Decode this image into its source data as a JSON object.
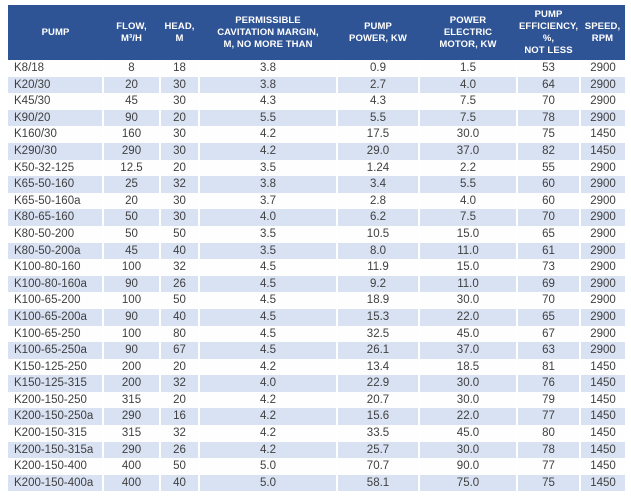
{
  "colors": {
    "header_bg": "#2F5496",
    "header_text": "#FFFFFF",
    "band_bg": "#D9E2F3",
    "row_bg": "#FEFEFE",
    "cell_text": "#3F3F3F"
  },
  "table": {
    "columns": [
      {
        "id": "pump",
        "label": "PUMP"
      },
      {
        "id": "flow",
        "label": "FLOW,\nM³/H"
      },
      {
        "id": "head",
        "label": "HEAD,\nM"
      },
      {
        "id": "cavitation",
        "label": "PERMISSIBLE\nCAVITATION MARGIN,\nM, NO MORE THAN"
      },
      {
        "id": "power",
        "label": "PUMP\nPOWER, KW"
      },
      {
        "id": "motor",
        "label": "POWER\nELECTRIC\nMOTOR, KW"
      },
      {
        "id": "efficiency",
        "label": "PUMP\nEFFICIENCY, %,\nNOT LESS"
      },
      {
        "id": "speed",
        "label": "SPEED,\nRPM"
      }
    ],
    "rows": [
      [
        "K8/18",
        "8",
        "18",
        "3.8",
        "0.9",
        "1.5",
        "53",
        "2900"
      ],
      [
        "K20/30",
        "20",
        "30",
        "3.8",
        "2.7",
        "4.0",
        "64",
        "2900"
      ],
      [
        "K45/30",
        "45",
        "30",
        "4.3",
        "4.3",
        "7.5",
        "70",
        "2900"
      ],
      [
        "K90/20",
        "90",
        "20",
        "5.5",
        "5.5",
        "7.5",
        "78",
        "2900"
      ],
      [
        "K160/30",
        "160",
        "30",
        "4.2",
        "17.5",
        "30.0",
        "75",
        "1450"
      ],
      [
        "K290/30",
        "290",
        "30",
        "4.2",
        "29.0",
        "37.0",
        "82",
        "1450"
      ],
      [
        "K50-32-125",
        "12.5",
        "20",
        "3.5",
        "1.24",
        "2.2",
        "55",
        "2900"
      ],
      [
        "K65-50-160",
        "25",
        "32",
        "3.8",
        "3.4",
        "5.5",
        "60",
        "2900"
      ],
      [
        "K65-50-160a",
        "20",
        "30",
        "3.7",
        "2.8",
        "4.0",
        "60",
        "2900"
      ],
      [
        "K80-65-160",
        "50",
        "30",
        "4.0",
        "6.2",
        "7.5",
        "70",
        "2900"
      ],
      [
        "K80-50-200",
        "50",
        "50",
        "3.5",
        "10.5",
        "15.0",
        "65",
        "2900"
      ],
      [
        "K80-50-200a",
        "45",
        "40",
        "3.5",
        "8.0",
        "11.0",
        "61",
        "2900"
      ],
      [
        "K100-80-160",
        "100",
        "32",
        "4.5",
        "11.9",
        "15.0",
        "73",
        "2900"
      ],
      [
        "K100-80-160a",
        "90",
        "26",
        "4.5",
        "9.2",
        "11.0",
        "69",
        "2900"
      ],
      [
        "K100-65-200",
        "100",
        "50",
        "4.5",
        "18.9",
        "30.0",
        "70",
        "2900"
      ],
      [
        "K100-65-200a",
        "90",
        "40",
        "4.5",
        "15.3",
        "22.0",
        "65",
        "2900"
      ],
      [
        "K100-65-250",
        "100",
        "80",
        "4.5",
        "32.5",
        "45.0",
        "67",
        "2900"
      ],
      [
        "K100-65-250a",
        "90",
        "67",
        "4.5",
        "26.1",
        "37.0",
        "63",
        "2900"
      ],
      [
        "K150-125-250",
        "200",
        "20",
        "4.2",
        "13.4",
        "18.5",
        "81",
        "1450"
      ],
      [
        "K150-125-315",
        "200",
        "32",
        "4.0",
        "22.9",
        "30.0",
        "76",
        "1450"
      ],
      [
        "K200-150-250",
        "315",
        "20",
        "4.2",
        "20.7",
        "30.0",
        "79",
        "1450"
      ],
      [
        "K200-150-250a",
        "290",
        "16",
        "4.2",
        "15.6",
        "22.0",
        "77",
        "1450"
      ],
      [
        "K200-150-315",
        "315",
        "32",
        "4.2",
        "33.5",
        "45.0",
        "80",
        "1450"
      ],
      [
        "K200-150-315a",
        "290",
        "26",
        "4.2",
        "25.7",
        "30.0",
        "78",
        "1450"
      ],
      [
        "K200-150-400",
        "400",
        "50",
        "5.0",
        "70.7",
        "90.0",
        "77",
        "1450"
      ],
      [
        "K200-150-400a",
        "400",
        "40",
        "5.0",
        "58.1",
        "75.0",
        "75",
        "1450"
      ]
    ]
  }
}
